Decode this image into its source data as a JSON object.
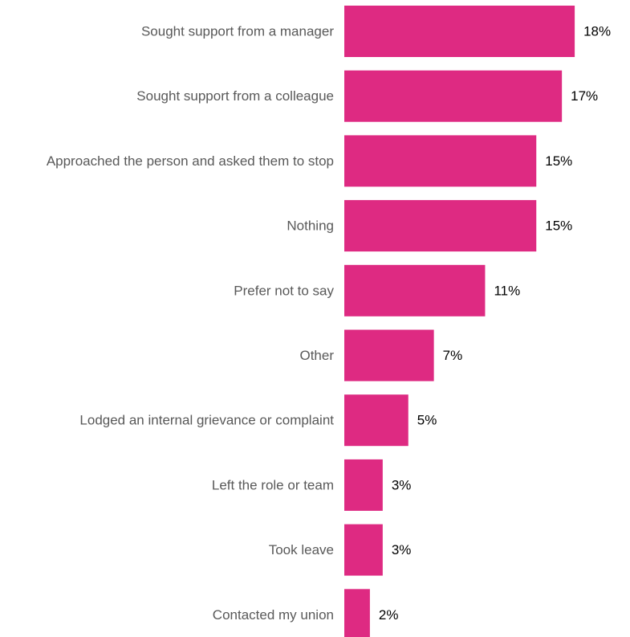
{
  "chart_data": {
    "type": "bar",
    "orientation": "horizontal",
    "title": "",
    "xlabel": "",
    "ylabel": "",
    "categories": [
      "Sought support from a manager",
      "Sought support from a colleague",
      "Approached the person and asked them to stop",
      "Nothing",
      "Prefer not to say",
      "Other",
      "Lodged an internal grievance or complaint",
      "Left the role or team",
      "Took leave",
      "Contacted my union"
    ],
    "values": [
      18,
      17,
      15,
      15,
      11,
      7,
      5,
      3,
      3,
      2
    ],
    "value_labels": [
      "18%",
      "17%",
      "15%",
      "15%",
      "11%",
      "7%",
      "5%",
      "3%",
      "3%",
      "2%"
    ],
    "unit": "%",
    "grid": false,
    "legend": "none",
    "bar_color": "#de2a82"
  }
}
